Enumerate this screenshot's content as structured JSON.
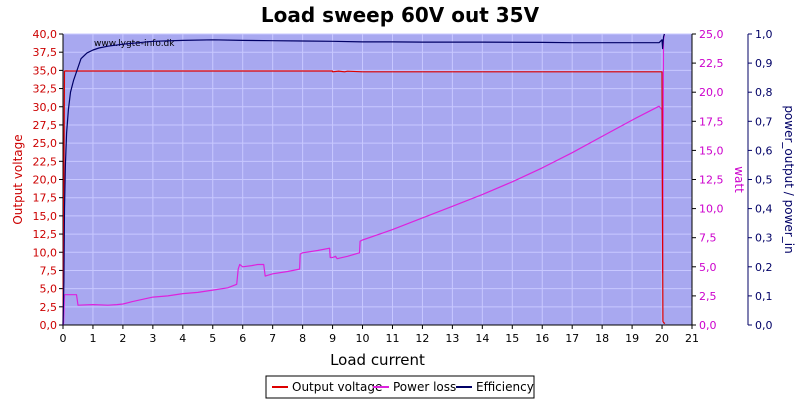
{
  "chart_data": {
    "type": "line",
    "title": "Load sweep 60V out 35V",
    "watermark": "www.lygte-info.dk",
    "xlabel": "Load current",
    "ylabel_left": "Output voltage",
    "ylabel_right1": "watt",
    "ylabel_right2": "power_output / power_in",
    "xlim": [
      0,
      21
    ],
    "ylim_left": [
      0,
      40
    ],
    "ylim_right1": [
      0,
      25
    ],
    "ylim_right2": [
      0,
      1
    ],
    "x_ticks": [
      "0",
      "1",
      "2",
      "3",
      "4",
      "5",
      "6",
      "7",
      "8",
      "9",
      "10",
      "11",
      "12",
      "13",
      "14",
      "15",
      "16",
      "17",
      "18",
      "19",
      "20",
      "21"
    ],
    "y_left_ticks": [
      "0,0",
      "2,5",
      "5,0",
      "7,5",
      "10,0",
      "12,5",
      "15,0",
      "17,5",
      "20,0",
      "22,5",
      "25,0",
      "27,5",
      "30,0",
      "32,5",
      "35,0",
      "37,5",
      "40,0"
    ],
    "y_right1_ticks": [
      "0,0",
      "2,5",
      "5,0",
      "7,5",
      "10,0",
      "12,5",
      "15,0",
      "17,5",
      "20,0",
      "22,5",
      "25,0"
    ],
    "y_right2_ticks": [
      "0,0",
      "0,1",
      "0,2",
      "0,3",
      "0,4",
      "0,5",
      "0,6",
      "0,7",
      "0,8",
      "0,9",
      "1,0"
    ],
    "grid": true,
    "legend_position": "bottom",
    "colors": {
      "plot_bg": "#a8a8f0",
      "grid": "#c8c8ff",
      "output_voltage": "#dd0000",
      "power_loss": "#dd22dd",
      "efficiency": "#000066",
      "left_axis": "#cc0000",
      "right1_axis": "#cc00cc",
      "right2_axis": "#000066"
    },
    "series": [
      {
        "name": "Output voltage",
        "axis": "left",
        "x": [
          0,
          0.05,
          0.1,
          0.2,
          0.5,
          1,
          2,
          5,
          8.99,
          9.0,
          9.2,
          9.4,
          9.5,
          10,
          12,
          15,
          18,
          19.8,
          20.0,
          20.03,
          20.06,
          20.1
        ],
        "y": [
          0,
          34.9,
          34.93,
          34.92,
          34.92,
          34.92,
          34.92,
          34.92,
          34.92,
          34.8,
          34.9,
          34.8,
          34.88,
          34.8,
          34.8,
          34.8,
          34.8,
          34.8,
          34.8,
          0.5,
          0.3,
          0.2
        ]
      },
      {
        "name": "Power loss",
        "axis": "right1",
        "x": [
          0,
          0.02,
          0.05,
          0.45,
          0.5,
          1.0,
          1.5,
          1.8,
          2.0,
          2.3,
          3.0,
          3.5,
          4.0,
          4.5,
          5.0,
          5.5,
          5.8,
          5.85,
          5.9,
          6.0,
          6.3,
          6.5,
          6.7,
          6.75,
          7.0,
          7.5,
          7.9,
          7.92,
          8.0,
          8.5,
          8.9,
          8.92,
          9.0,
          9.1,
          9.15,
          9.5,
          9.9,
          9.92,
          10.0,
          11.0,
          12.0,
          13.0,
          14.0,
          15.0,
          16.0,
          17.0,
          18.0,
          19.0,
          19.9,
          20.0,
          20.02,
          20.05,
          20.08
        ],
        "y": [
          0,
          0.2,
          2.6,
          2.6,
          1.7,
          1.75,
          1.7,
          1.75,
          1.8,
          2.0,
          2.4,
          2.5,
          2.7,
          2.8,
          3.0,
          3.2,
          3.5,
          4.8,
          5.2,
          5.0,
          5.1,
          5.2,
          5.2,
          4.2,
          4.4,
          4.6,
          4.8,
          6.1,
          6.2,
          6.4,
          6.6,
          5.8,
          5.8,
          5.9,
          5.7,
          5.9,
          6.2,
          7.2,
          7.3,
          8.2,
          9.2,
          10.2,
          11.2,
          12.3,
          13.5,
          14.8,
          16.2,
          17.6,
          18.8,
          18.5,
          4.5,
          24.5,
          25.0
        ]
      },
      {
        "name": "Efficiency",
        "axis": "right2",
        "x": [
          0,
          0.03,
          0.05,
          0.08,
          0.12,
          0.18,
          0.25,
          0.35,
          0.45,
          0.6,
          0.8,
          1.0,
          1.2,
          1.5,
          2.0,
          3.0,
          4.0,
          5.0,
          6.0,
          7.0,
          8.0,
          9.0,
          10.0,
          11.0,
          12.0,
          14.0,
          16.0,
          17.0,
          18.0,
          19.0,
          19.9,
          20.0,
          20.02,
          20.05,
          20.08
        ],
        "y": [
          0,
          0.15,
          0.4,
          0.55,
          0.66,
          0.74,
          0.8,
          0.84,
          0.87,
          0.915,
          0.935,
          0.945,
          0.952,
          0.958,
          0.965,
          0.975,
          0.978,
          0.98,
          0.978,
          0.977,
          0.976,
          0.975,
          0.973,
          0.973,
          0.972,
          0.972,
          0.971,
          0.97,
          0.97,
          0.97,
          0.97,
          0.98,
          0.95,
          0.99,
          1.0
        ]
      }
    ]
  }
}
